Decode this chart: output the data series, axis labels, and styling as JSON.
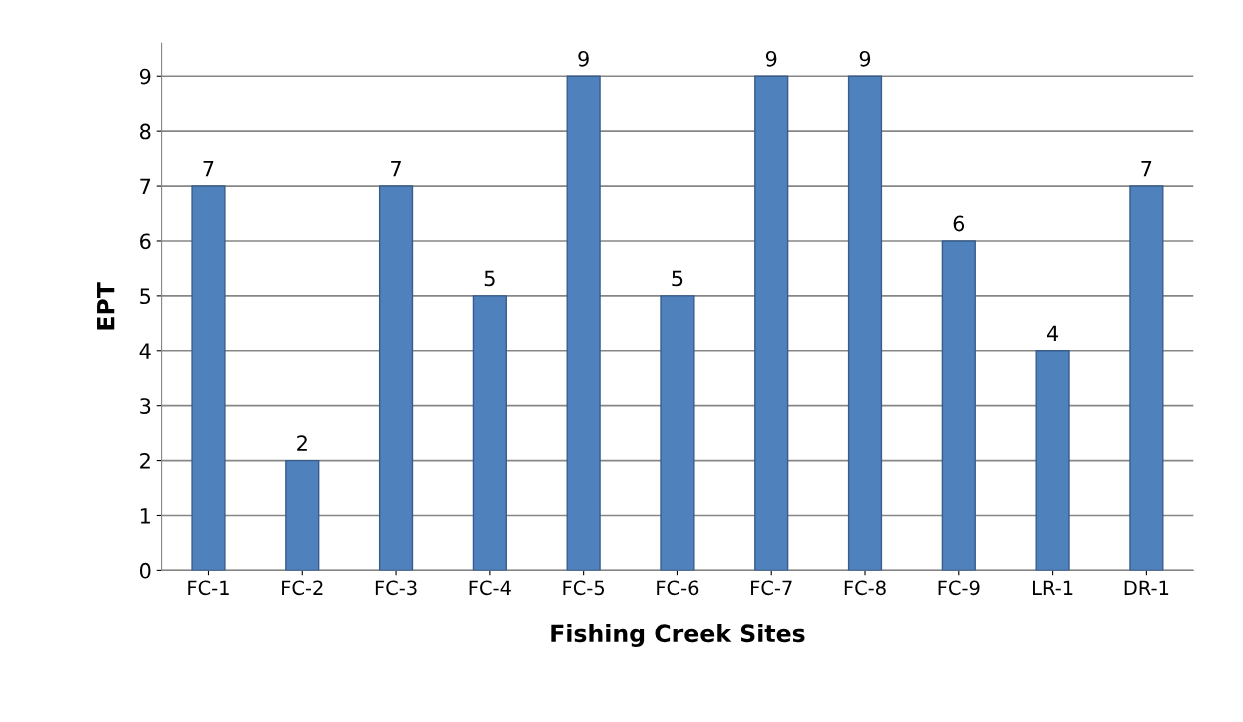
{
  "chart_data": {
    "type": "bar",
    "xlabel": "Fishing Creek Sites",
    "ylabel": "EPT",
    "categories": [
      "FC-1",
      "FC-2",
      "FC-3",
      "FC-4",
      "FC-5",
      "FC-6",
      "FC-7",
      "FC-8",
      "FC-9",
      "LR-1",
      "DR-1"
    ],
    "values": [
      7,
      2,
      7,
      5,
      9,
      5,
      9,
      9,
      6,
      4,
      7
    ],
    "color": "#4f81bd",
    "ylim": [
      0,
      9.6
    ],
    "yticks": [
      0,
      1,
      2,
      3,
      4,
      5,
      6,
      7,
      8,
      9
    ],
    "grid": "y",
    "data_labels": true
  }
}
